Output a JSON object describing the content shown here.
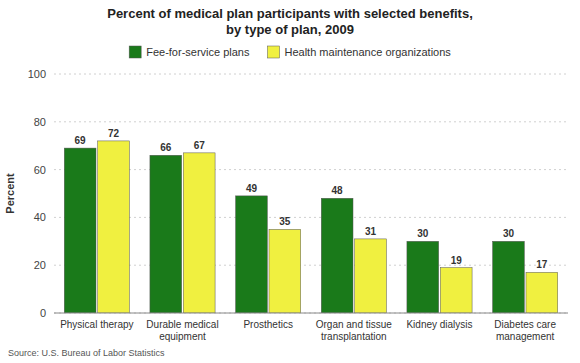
{
  "chart_data": {
    "type": "bar",
    "title": "Percent of medical plan participants with selected benefits,\nby type of plan, 2009",
    "categories": [
      "Physical therapy",
      "Durable medical\nequipment",
      "Prosthetics",
      "Organ and tissue\ntransplantation",
      "Kidney dialysis",
      "Diabetes care\nmanagement"
    ],
    "series": [
      {
        "name": "Fee-for-service plans",
        "color": "#1a7a1a",
        "values": [
          69,
          66,
          49,
          48,
          30,
          30
        ]
      },
      {
        "name": "Health maintenance organizations",
        "color": "#f0f040",
        "values": [
          72,
          67,
          35,
          31,
          19,
          17
        ]
      }
    ],
    "ylabel": "Percent",
    "ylim": [
      0,
      100
    ],
    "yticks": [
      0,
      20,
      40,
      60,
      80,
      100
    ],
    "grid": true,
    "legend": "top",
    "data_labels": true,
    "annotations": [
      "Source: U.S. Bureau of Labor Statistics"
    ]
  }
}
